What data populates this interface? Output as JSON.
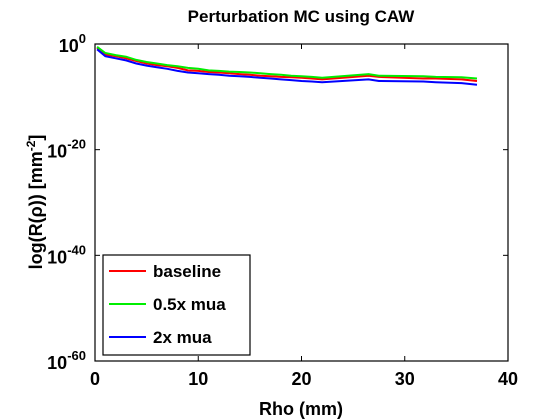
{
  "chart_data": {
    "type": "line",
    "title": "Perturbation MC using CAW",
    "xlabel": "Rho (mm)",
    "ylabel": "log(R(ρ)) [mm",
    "ylabel_sup": "-2",
    "ylabel_close": "]",
    "xlim": [
      0,
      40
    ],
    "ylim": [
      1e-60,
      1
    ],
    "yscale": "log",
    "grid": false,
    "legend_position": "bottom-left",
    "x_ticks": [
      "0",
      "10",
      "20",
      "30",
      "40"
    ],
    "y_ticks": [
      {
        "base": "10",
        "exp": "0"
      },
      {
        "base": "10",
        "exp": "-20"
      },
      {
        "base": "10",
        "exp": "-40"
      },
      {
        "base": "10",
        "exp": "-60"
      }
    ],
    "x": [
      0.2,
      1,
      2,
      3,
      4,
      5,
      6,
      7,
      8,
      9,
      10,
      11,
      12,
      13,
      14,
      15,
      16,
      17,
      18,
      19,
      20,
      21,
      22,
      26.5,
      27.5,
      31.8,
      33,
      35.5,
      37
    ],
    "series": [
      {
        "name": "baseline",
        "color": "#ff0000",
        "values": [
          0.2,
          0.01,
          0.005,
          0.002,
          0.0006,
          0.0002,
          0.0001,
          6e-05,
          3e-05,
          1e-05,
          8e-06,
          5e-06,
          4e-06,
          3e-06,
          2e-06,
          1.5e-06,
          1e-06,
          8e-07,
          6e-07,
          5e-07,
          4e-07,
          3e-07,
          2e-07,
          1e-06,
          6e-07,
          3e-07,
          3e-07,
          2e-07,
          1e-07
        ]
      },
      {
        "name": "0.5x mua",
        "color": "#00ee00",
        "values": [
          0.3,
          0.02,
          0.008,
          0.004,
          0.001,
          0.0004,
          0.0002,
          0.0001,
          6e-05,
          3e-05,
          2e-05,
          1e-05,
          8e-06,
          6e-06,
          5e-06,
          4e-06,
          3e-06,
          2e-06,
          1.5e-06,
          1e-06,
          8e-07,
          6e-07,
          4e-07,
          2e-06,
          1e-06,
          8e-07,
          6e-07,
          5e-07,
          3e-07
        ]
      },
      {
        "name": "2x mua",
        "color": "#0000ff",
        "values": [
          0.1,
          0.005,
          0.002,
          0.0008,
          0.0002,
          8e-05,
          4e-05,
          2e-05,
          8e-06,
          4e-06,
          3e-06,
          2e-06,
          1.5e-06,
          1e-06,
          8e-07,
          6e-07,
          4e-07,
          3e-07,
          2e-07,
          1.5e-07,
          1e-07,
          8e-08,
          6e-08,
          2e-07,
          1e-07,
          8e-08,
          6e-08,
          4e-08,
          2e-08
        ]
      }
    ]
  }
}
